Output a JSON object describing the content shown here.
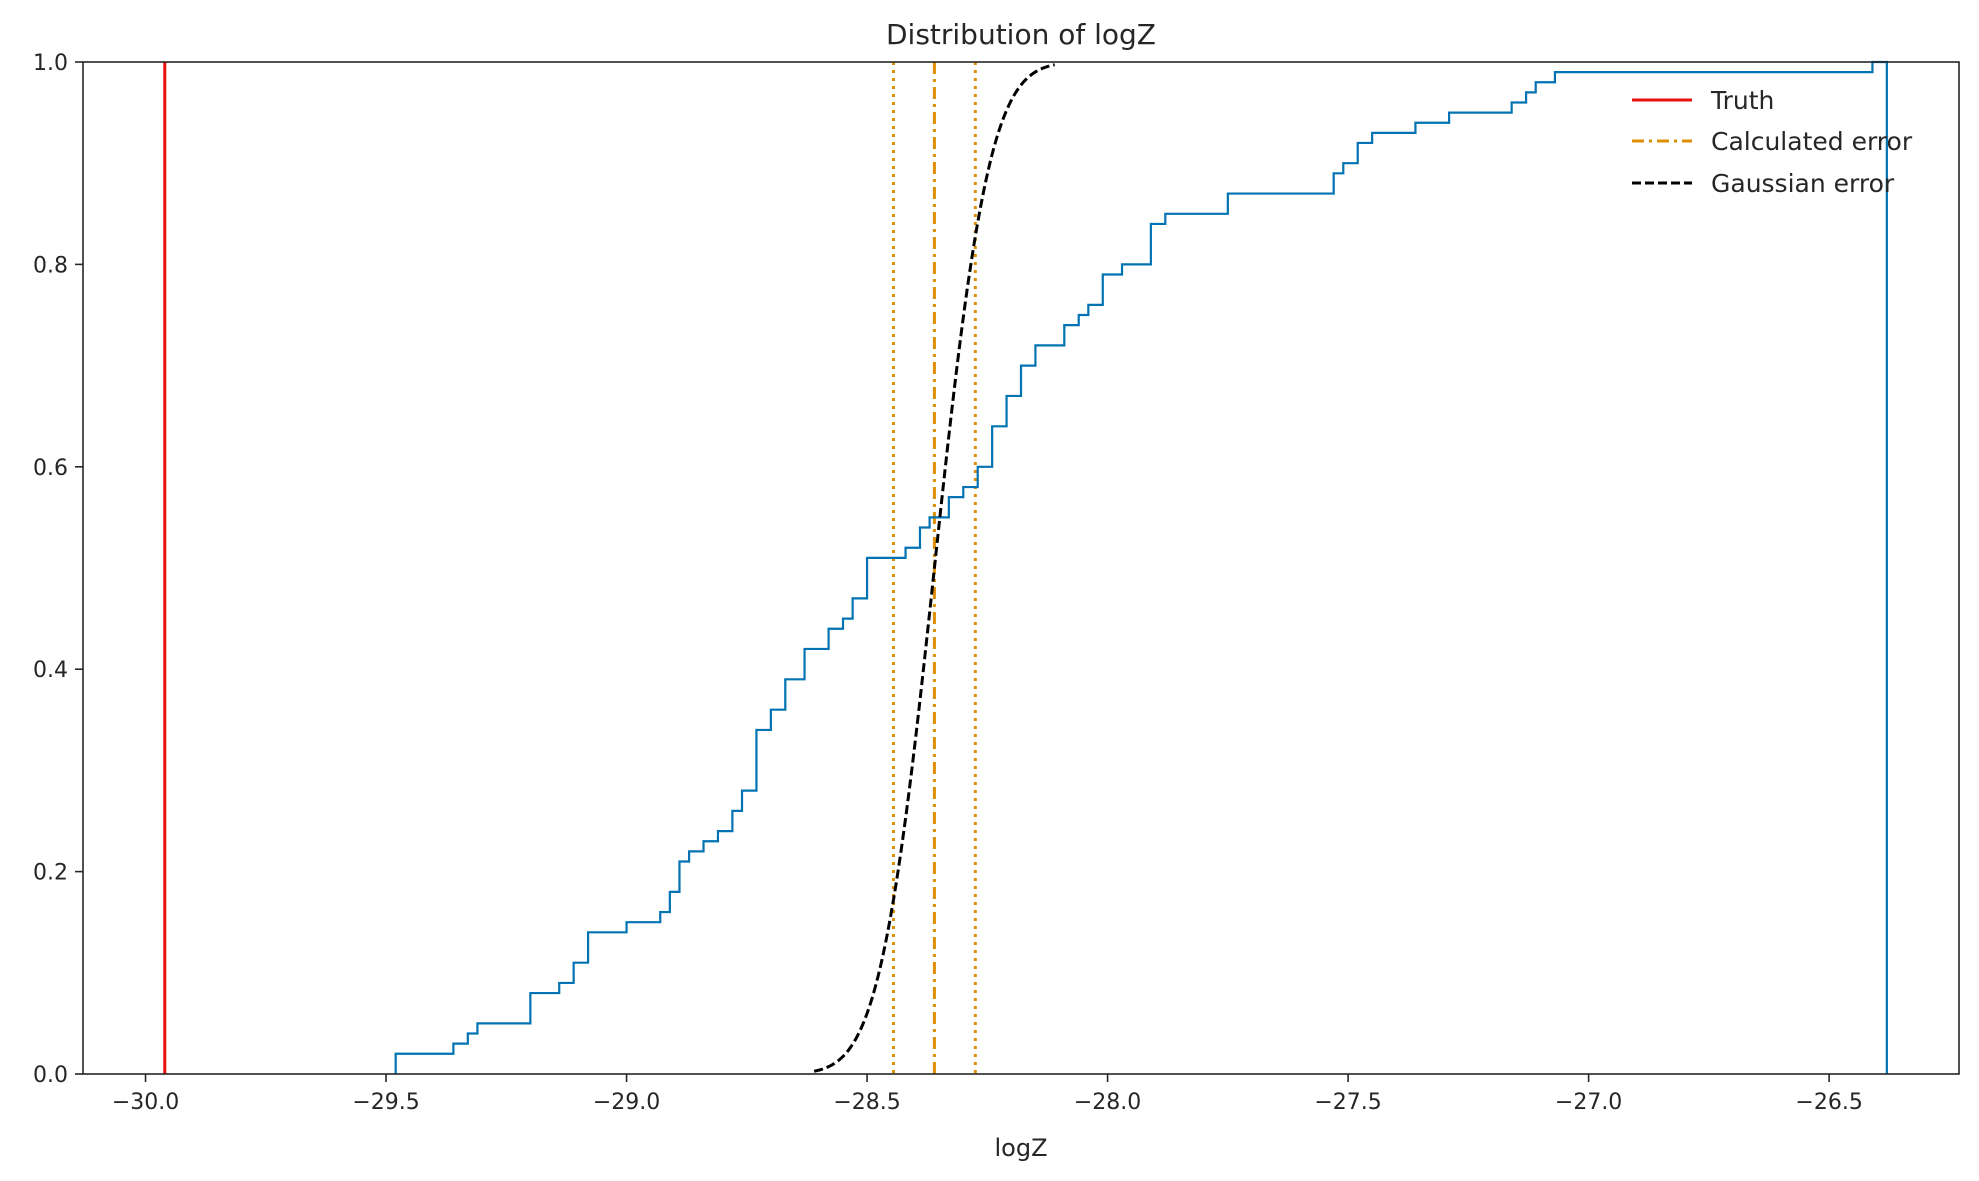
{
  "chart_data": {
    "type": "line",
    "title": "Distribution of logZ",
    "xlabel": "logZ",
    "ylabel": "",
    "xlim": [
      -30.13,
      -26.23
    ],
    "ylim": [
      0.0,
      1.0
    ],
    "xticks": [
      -30.0,
      -29.5,
      -29.0,
      -28.5,
      -28.0,
      -27.5,
      -27.0,
      -26.5
    ],
    "xtick_labels": [
      "−30.0",
      "−29.5",
      "−29.0",
      "−28.5",
      "−28.0",
      "−27.5",
      "−27.0",
      "−26.5"
    ],
    "yticks": [
      0.0,
      0.2,
      0.4,
      0.6,
      0.8,
      1.0
    ],
    "ytick_labels": [
      "0.0",
      "0.2",
      "0.4",
      "0.6",
      "0.8",
      "1.0"
    ],
    "grid": false,
    "legend_position": "top-right",
    "legend": [
      {
        "label": "Truth",
        "color": "#e8120c",
        "style": "solid"
      },
      {
        "label": "Calculated error",
        "color": "#de8f05",
        "style": "dashdot"
      },
      {
        "label": "Gaussian error",
        "color": "#000000",
        "style": "dashed"
      }
    ],
    "series": [
      {
        "kind": "ecdf_step",
        "color": "#0173b2",
        "x": [
          -29.48,
          -29.36,
          -29.33,
          -29.31,
          -29.28,
          -29.2,
          -29.14,
          -29.11,
          -29.08,
          -29.0,
          -28.93,
          -28.91,
          -28.89,
          -28.87,
          -28.84,
          -28.81,
          -28.78,
          -28.76,
          -28.73,
          -28.7,
          -28.67,
          -28.63,
          -28.58,
          -28.55,
          -28.53,
          -28.5,
          -28.47,
          -28.42,
          -28.39,
          -28.37,
          -28.33,
          -28.3,
          -28.27,
          -28.24,
          -28.21,
          -28.18,
          -28.15,
          -28.09,
          -28.06,
          -28.04,
          -28.01,
          -27.97,
          -27.91,
          -27.88,
          -27.85,
          -27.75,
          -27.53,
          -27.51,
          -27.48,
          -27.45,
          -27.36,
          -27.29,
          -27.16,
          -27.13,
          -27.11,
          -27.07,
          -26.41,
          -26.38
        ],
        "y": [
          0.02,
          0.03,
          0.04,
          0.05,
          0.05,
          0.08,
          0.09,
          0.11,
          0.14,
          0.15,
          0.16,
          0.18,
          0.21,
          0.22,
          0.23,
          0.24,
          0.26,
          0.28,
          0.34,
          0.36,
          0.39,
          0.42,
          0.44,
          0.45,
          0.47,
          0.51,
          0.51,
          0.52,
          0.54,
          0.55,
          0.57,
          0.58,
          0.6,
          0.64,
          0.67,
          0.7,
          0.72,
          0.74,
          0.75,
          0.76,
          0.79,
          0.8,
          0.84,
          0.85,
          0.85,
          0.87,
          0.89,
          0.9,
          0.92,
          0.93,
          0.94,
          0.95,
          0.96,
          0.97,
          0.98,
          0.99,
          1.0,
          1.0
        ]
      },
      {
        "name": "Gaussian error",
        "kind": "cdf_curve",
        "color": "#000000",
        "style": "dashed",
        "mean": -28.36,
        "sigma": 0.09,
        "x_range": [
          -28.61,
          -28.11
        ]
      }
    ],
    "vlines": [
      {
        "name": "Truth",
        "x": -29.96,
        "color": "#e8120c",
        "style": "solid"
      },
      {
        "name": "Calculated error",
        "x": -28.36,
        "color": "#de8f05",
        "style": "dashdot"
      },
      {
        "x": -28.445,
        "color": "#de8f05",
        "style": "dotted"
      },
      {
        "x": -28.275,
        "color": "#de8f05",
        "style": "dotted"
      }
    ]
  }
}
